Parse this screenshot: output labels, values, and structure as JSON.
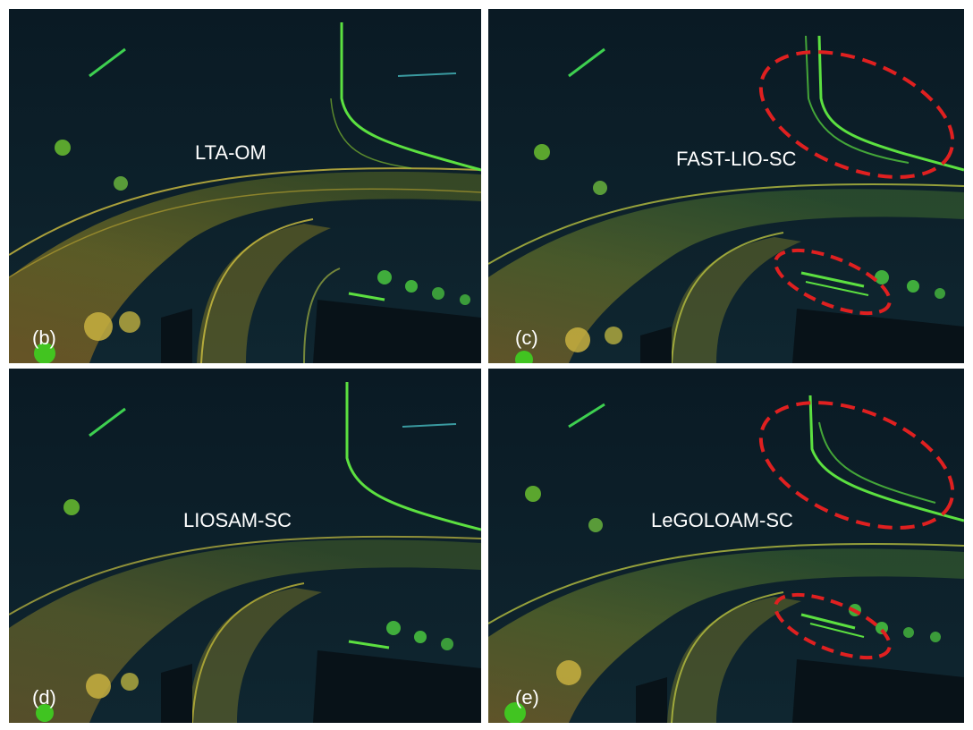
{
  "figure": {
    "panels": [
      {
        "id": "b",
        "title": "LTA-OM",
        "tag": "(b)",
        "highlighted": false
      },
      {
        "id": "c",
        "title": "FAST-LIO-SC",
        "tag": "(c)",
        "highlighted": true
      },
      {
        "id": "d",
        "title": "LIOSAM-SC",
        "tag": "(d)",
        "highlighted": false
      },
      {
        "id": "e",
        "title": "LeGOLOAM-SC",
        "tag": "(e)",
        "highlighted": true
      }
    ],
    "colors": {
      "background_top": "#0b1d28",
      "background_bottom": "#0e2530",
      "near_points": "#e0a020",
      "far_points": "#4cd040",
      "highlight": "#e02020"
    }
  }
}
